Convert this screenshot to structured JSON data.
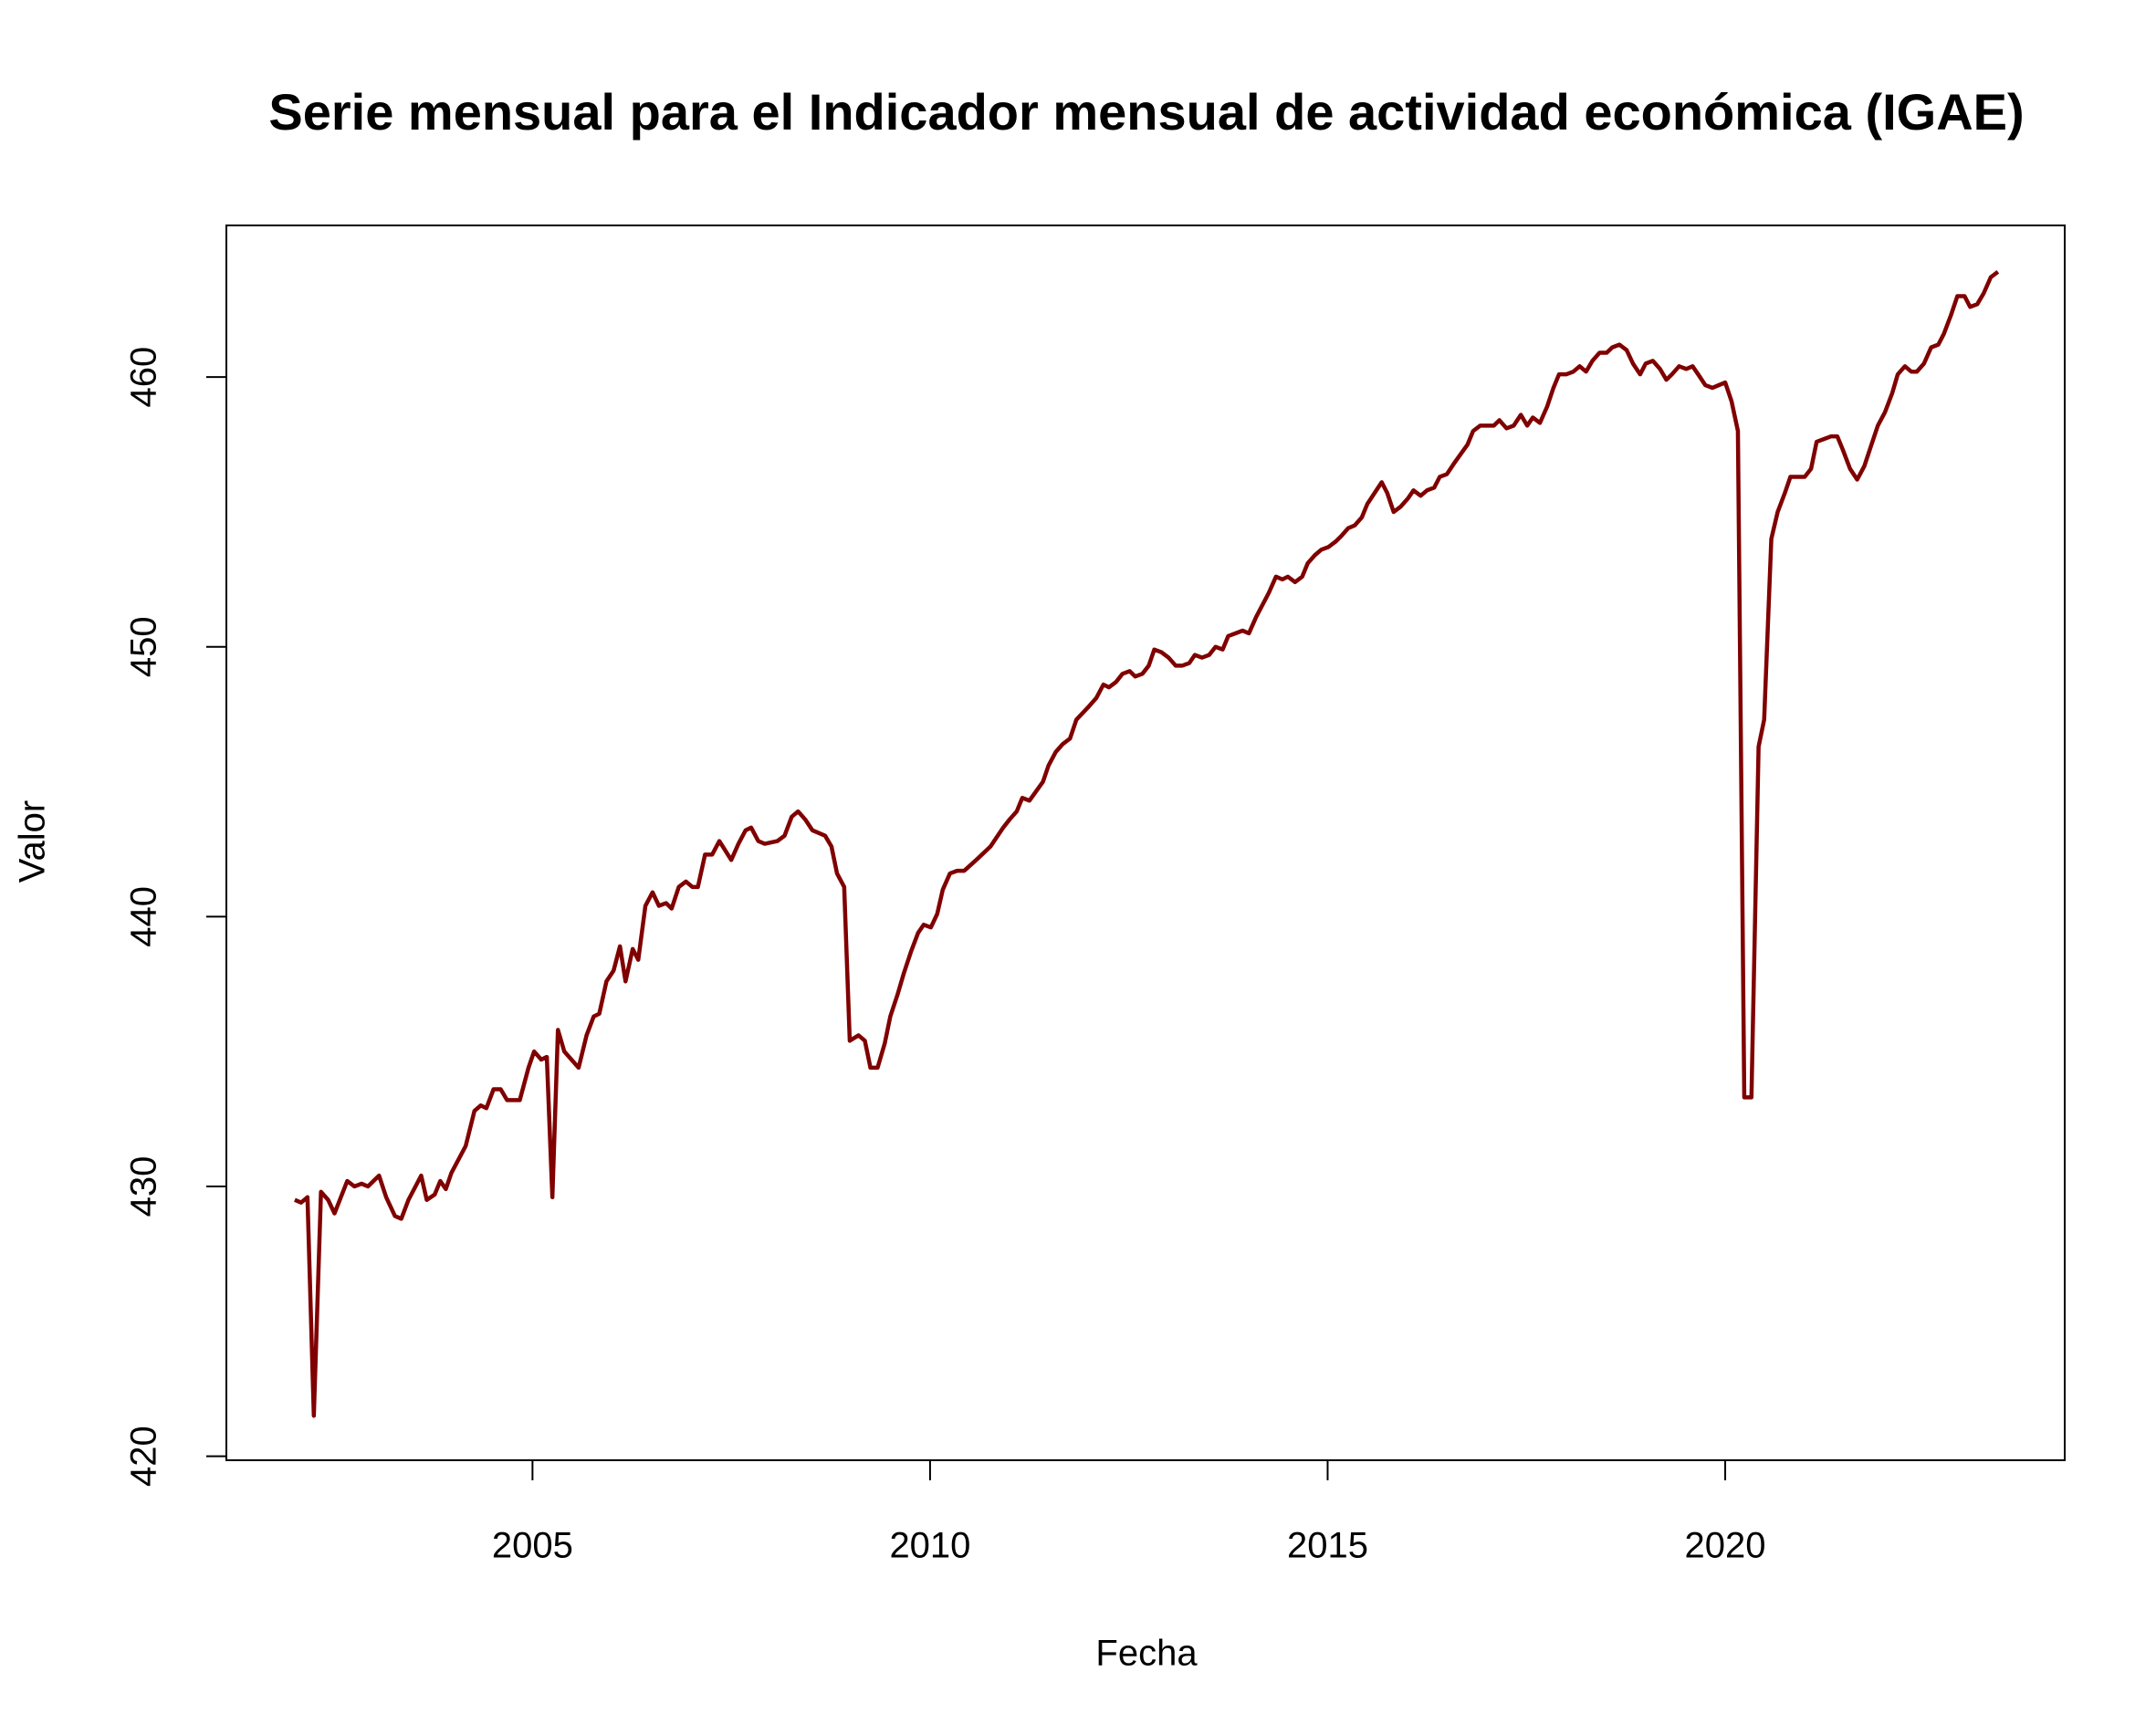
{
  "chart_data": {
    "type": "line",
    "title": "Serie mensual para el Indicador mensual de actividad económica (IGAE)",
    "xlabel": "Fecha",
    "ylabel": "Valor",
    "color": "#800000",
    "xlim": [
      2001.15,
      2024.27
    ],
    "ylim": [
      419.85,
      465.62
    ],
    "xticks": [
      2005,
      2010,
      2015,
      2020
    ],
    "yticks": [
      420,
      430,
      440,
      450,
      460
    ],
    "x": [
      2002.01,
      2002.09,
      2002.17,
      2002.25,
      2002.34,
      2002.43,
      2002.51,
      2002.67,
      2002.76,
      2002.85,
      2002.93,
      2003.07,
      2003.16,
      2003.27,
      2003.35,
      2003.44,
      2003.6,
      2003.67,
      2003.77,
      2003.84,
      2003.91,
      2003.98,
      2004.16,
      2004.27,
      2004.35,
      2004.42,
      2004.51,
      2004.6,
      2004.68,
      2004.84,
      2004.95,
      2005.02,
      2005.11,
      2005.18,
      2005.25,
      2005.32,
      2005.4,
      2005.49,
      2005.58,
      2005.68,
      2005.77,
      2005.84,
      2005.93,
      2006.02,
      2006.1,
      2006.17,
      2006.26,
      2006.33,
      2006.42,
      2006.51,
      2006.59,
      2006.68,
      2006.75,
      2006.84,
      2006.93,
      2007.01,
      2007.08,
      2007.17,
      2007.26,
      2007.35,
      2007.5,
      2007.59,
      2007.68,
      2007.75,
      2007.84,
      2007.92,
      2008.08,
      2008.17,
      2008.26,
      2008.34,
      2008.43,
      2008.52,
      2008.68,
      2008.76,
      2008.83,
      2008.92,
      2008.99,
      2009.1,
      2009.18,
      2009.25,
      2009.34,
      2009.43,
      2009.5,
      2009.59,
      2009.67,
      2009.76,
      2009.85,
      2009.92,
      2010.01,
      2010.09,
      2010.16,
      2010.25,
      2010.34,
      2010.43,
      2010.58,
      2010.76,
      2010.92,
      2011.0,
      2011.09,
      2011.16,
      2011.25,
      2011.42,
      2011.49,
      2011.58,
      2011.67,
      2011.76,
      2011.84,
      2012.0,
      2012.09,
      2012.18,
      2012.25,
      2012.34,
      2012.42,
      2012.51,
      2012.58,
      2012.67,
      2012.75,
      2012.82,
      2012.91,
      2013.0,
      2013.09,
      2013.17,
      2013.26,
      2013.33,
      2013.42,
      2013.51,
      2013.59,
      2013.68,
      2013.75,
      2013.84,
      2013.93,
      2014.01,
      2014.1,
      2014.26,
      2014.35,
      2014.43,
      2014.5,
      2014.59,
      2014.68,
      2014.75,
      2014.84,
      2014.92,
      2015.01,
      2015.1,
      2015.17,
      2015.26,
      2015.34,
      2015.43,
      2015.5,
      2015.59,
      2015.68,
      2015.75,
      2015.83,
      2015.92,
      2016.01,
      2016.08,
      2016.17,
      2016.25,
      2016.34,
      2016.41,
      2016.5,
      2016.59,
      2016.76,
      2016.83,
      2016.92,
      2017.01,
      2017.09,
      2017.16,
      2017.25,
      2017.34,
      2017.43,
      2017.51,
      2017.58,
      2017.67,
      2017.76,
      2017.84,
      2017.91,
      2018.0,
      2018.09,
      2018.17,
      2018.25,
      2018.33,
      2018.42,
      2018.51,
      2018.58,
      2018.67,
      2018.76,
      2018.84,
      2018.93,
      2019.0,
      2019.09,
      2019.18,
      2019.26,
      2019.33,
      2019.42,
      2019.51,
      2019.59,
      2019.66,
      2019.75,
      2019.84,
      2019.92,
      2020.0,
      2020.08,
      2020.16,
      2020.24,
      2020.33,
      2020.42,
      2020.49,
      2020.58,
      2020.66,
      2020.75,
      2020.82,
      2020.91,
      2021.0,
      2021.08,
      2021.15,
      2021.24,
      2021.33,
      2021.41,
      2021.48,
      2021.57,
      2021.66,
      2021.75,
      2021.84,
      2021.92,
      2022.01,
      2022.1,
      2022.17,
      2022.26,
      2022.34,
      2022.41,
      2022.5,
      2022.59,
      2022.68,
      2022.75,
      2022.84,
      2022.92,
      2023.01,
      2023.08,
      2023.17,
      2023.25,
      2023.34,
      2023.43
    ],
    "values": [
      429.5,
      429.4,
      429.6,
      421.5,
      429.8,
      429.5,
      429.0,
      430.2,
      430.0,
      430.1,
      430.0,
      430.4,
      429.6,
      428.9,
      428.8,
      429.5,
      430.4,
      429.5,
      429.7,
      430.2,
      429.9,
      430.5,
      431.5,
      432.8,
      433.0,
      432.9,
      433.6,
      433.6,
      433.2,
      433.2,
      434.4,
      435.0,
      434.7,
      434.8,
      429.6,
      435.8,
      435.0,
      434.7,
      434.4,
      435.6,
      436.3,
      436.4,
      437.6,
      438.0,
      438.9,
      437.6,
      438.8,
      438.4,
      440.4,
      440.9,
      440.4,
      440.5,
      440.3,
      441.1,
      441.3,
      441.1,
      441.1,
      442.3,
      442.3,
      442.8,
      442.1,
      442.7,
      443.2,
      443.3,
      442.8,
      442.7,
      442.8,
      443.0,
      443.7,
      443.9,
      443.6,
      443.2,
      443.0,
      442.6,
      441.6,
      441.1,
      435.4,
      435.6,
      435.4,
      434.4,
      434.4,
      435.3,
      436.3,
      437.1,
      437.9,
      438.7,
      439.4,
      439.7,
      439.6,
      440.1,
      441.0,
      441.6,
      441.7,
      441.7,
      442.1,
      442.6,
      443.3,
      443.6,
      443.9,
      444.4,
      444.3,
      445.0,
      445.6,
      446.1,
      446.4,
      446.6,
      447.3,
      447.8,
      448.1,
      448.6,
      448.5,
      448.7,
      449.0,
      449.1,
      448.9,
      449.0,
      449.3,
      449.9,
      449.8,
      449.6,
      449.3,
      449.3,
      449.4,
      449.7,
      449.6,
      449.7,
      450.0,
      449.9,
      450.4,
      450.5,
      450.6,
      450.5,
      451.1,
      452.0,
      452.6,
      452.5,
      452.6,
      452.4,
      452.6,
      453.1,
      453.4,
      453.6,
      453.7,
      453.9,
      454.1,
      454.4,
      454.5,
      454.8,
      455.3,
      455.7,
      456.1,
      455.7,
      455.0,
      455.2,
      455.5,
      455.8,
      455.6,
      455.8,
      455.9,
      456.3,
      456.4,
      456.8,
      457.5,
      458.0,
      458.2,
      458.2,
      458.2,
      458.4,
      458.1,
      458.2,
      458.6,
      458.2,
      458.5,
      458.3,
      458.9,
      459.6,
      460.1,
      460.1,
      460.2,
      460.4,
      460.2,
      460.6,
      460.9,
      460.9,
      461.1,
      461.2,
      461.0,
      460.5,
      460.1,
      460.5,
      460.6,
      460.3,
      459.9,
      460.1,
      460.4,
      460.3,
      460.4,
      460.1,
      459.7,
      459.6,
      459.7,
      459.8,
      459.1,
      458.0,
      433.3,
      433.3,
      446.3,
      447.3,
      454.0,
      455.0,
      455.7,
      456.3,
      456.3,
      456.3,
      456.6,
      457.6,
      457.7,
      457.8,
      457.8,
      457.3,
      456.6,
      456.2,
      456.7,
      457.5,
      458.2,
      458.7,
      459.4,
      460.1,
      460.4,
      460.2,
      460.2,
      460.5,
      461.1,
      461.2,
      461.6,
      462.3,
      463.0,
      463.0,
      462.6,
      462.7,
      463.1,
      463.7,
      463.9
    ]
  }
}
